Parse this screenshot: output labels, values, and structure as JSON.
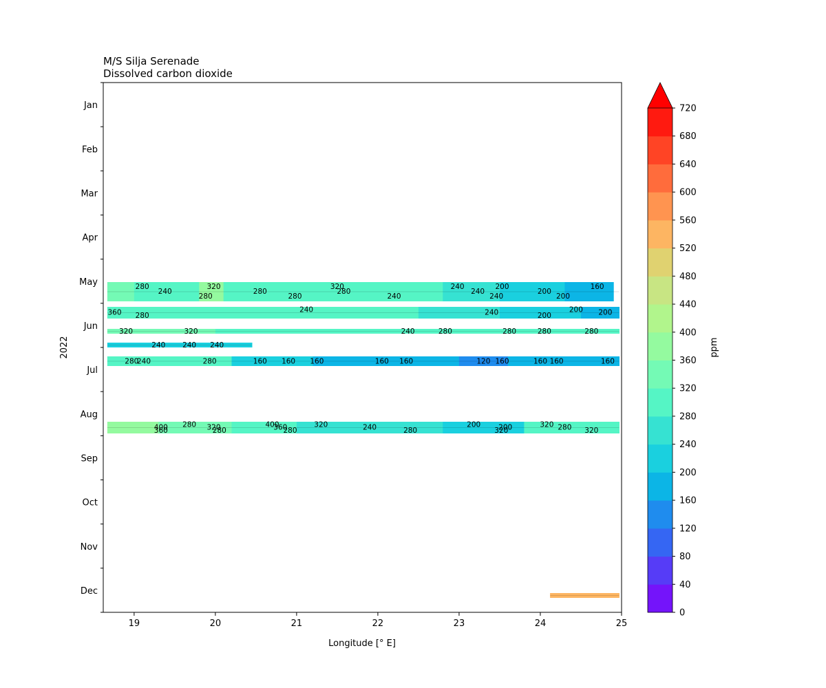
{
  "chart_data": {
    "type": "heatmap",
    "title_line1": "M/S Silja Serenade",
    "title_line2": "Dissolved carbon dioxide",
    "xlabel": "Longitude [° E]",
    "ylabel": "2022",
    "colorbar_label": "ppm",
    "xlim": [
      18.62,
      25.0
    ],
    "xticks": [
      19,
      20,
      21,
      22,
      23,
      24,
      25
    ],
    "y_month_labels": [
      "Jan",
      "Feb",
      "Mar",
      "Apr",
      "May",
      "Jun",
      "Jul",
      "Aug",
      "Sep",
      "Oct",
      "Nov",
      "Dec"
    ],
    "levels": [
      0,
      40,
      80,
      120,
      160,
      200,
      240,
      280,
      320,
      360,
      400,
      440,
      480,
      520,
      560,
      600,
      640,
      680,
      720
    ],
    "level_colors": [
      "#7414fa",
      "#563cf7",
      "#3566f3",
      "#1f8cee",
      "#0cb5e6",
      "#1ad0df",
      "#36e2d2",
      "#55f5c5",
      "#74fab5",
      "#94fa9f",
      "#b1f58c",
      "#c8e583",
      "#e0d270",
      "#fdb562",
      "#ff9450",
      "#ff6c3c",
      "#ff4425",
      "#ff1a10"
    ],
    "extend_color": "#ff0000",
    "bands": [
      {
        "period": "mid May (i)",
        "lon": [
          18.67,
          24.97
        ],
        "segments": [
          [
            18.67,
            19.0,
            320
          ],
          [
            19.0,
            19.8,
            300
          ],
          [
            19.8,
            20.1,
            360
          ],
          [
            20.1,
            22.8,
            280
          ],
          [
            22.8,
            23.5,
            240
          ],
          [
            23.5,
            24.3,
            200
          ],
          [
            24.3,
            24.9,
            180
          ]
        ]
      },
      {
        "period": "late May",
        "lon": [
          18.67,
          24.97
        ],
        "segments": [
          [
            18.67,
            20.0,
            300
          ],
          [
            20.0,
            22.5,
            280
          ],
          [
            22.5,
            23.5,
            240
          ],
          [
            23.5,
            24.5,
            200
          ],
          [
            24.5,
            24.97,
            190
          ]
        ]
      },
      {
        "period": "early Jun",
        "lon": [
          18.67,
          24.97
        ],
        "segments": [
          [
            18.67,
            20.0,
            320
          ],
          [
            20.0,
            23.5,
            280
          ],
          [
            23.5,
            24.97,
            280
          ]
        ]
      },
      {
        "period": "mid Jun",
        "lon": [
          18.67,
          20.45
        ],
        "segments": [
          [
            18.67,
            20.45,
            220
          ]
        ]
      },
      {
        "period": "late Jun",
        "lon": [
          18.67,
          24.97
        ],
        "segments": [
          [
            18.67,
            19.3,
            300
          ],
          [
            19.3,
            20.2,
            280
          ],
          [
            20.2,
            21.2,
            200
          ],
          [
            21.2,
            23.0,
            170
          ],
          [
            23.0,
            23.6,
            140
          ],
          [
            23.6,
            24.5,
            170
          ],
          [
            24.5,
            24.97,
            180
          ]
        ]
      },
      {
        "period": "mid Aug",
        "lon": [
          18.67,
          24.97
        ],
        "segments": [
          [
            18.67,
            19.3,
            380
          ],
          [
            19.3,
            20.2,
            320
          ],
          [
            20.2,
            21.0,
            300
          ],
          [
            21.0,
            22.8,
            260
          ],
          [
            22.8,
            23.8,
            220
          ],
          [
            23.8,
            24.97,
            300
          ]
        ]
      },
      {
        "period": "Dec",
        "lon": [
          24.12,
          24.97
        ],
        "segments": [
          [
            24.12,
            24.97,
            540
          ]
        ]
      }
    ],
    "contour_labels": [
      {
        "text": "280",
        "lon": 19.1,
        "band": 0
      },
      {
        "text": "240",
        "lon": 19.38,
        "band": 0
      },
      {
        "text": "280",
        "lon": 19.88,
        "band": 0
      },
      {
        "text": "320",
        "lon": 19.98,
        "band": 0
      },
      {
        "text": "280",
        "lon": 20.55,
        "band": 0
      },
      {
        "text": "280",
        "lon": 20.98,
        "band": 0
      },
      {
        "text": "320",
        "lon": 21.5,
        "band": 0
      },
      {
        "text": "280",
        "lon": 21.58,
        "band": 0
      },
      {
        "text": "240",
        "lon": 22.2,
        "band": 0
      },
      {
        "text": "240",
        "lon": 22.98,
        "band": 0
      },
      {
        "text": "240",
        "lon": 23.23,
        "band": 0
      },
      {
        "text": "240",
        "lon": 23.46,
        "band": 0
      },
      {
        "text": "200",
        "lon": 23.53,
        "band": 0
      },
      {
        "text": "200",
        "lon": 24.05,
        "band": 0
      },
      {
        "text": "200",
        "lon": 24.28,
        "band": 0
      },
      {
        "text": "160",
        "lon": 24.7,
        "band": 0
      },
      {
        "text": "360",
        "lon": 18.76,
        "band": 1
      },
      {
        "text": "280",
        "lon": 19.1,
        "band": 1
      },
      {
        "text": "240",
        "lon": 21.12,
        "band": 1
      },
      {
        "text": "240",
        "lon": 23.4,
        "band": 1
      },
      {
        "text": "200",
        "lon": 24.05,
        "band": 1
      },
      {
        "text": "200",
        "lon": 24.44,
        "band": 1
      },
      {
        "text": "200",
        "lon": 24.8,
        "band": 1
      },
      {
        "text": "320",
        "lon": 18.9,
        "band": 2
      },
      {
        "text": "320",
        "lon": 19.7,
        "band": 2
      },
      {
        "text": "240",
        "lon": 22.37,
        "band": 2
      },
      {
        "text": "280",
        "lon": 22.83,
        "band": 2
      },
      {
        "text": "280",
        "lon": 23.62,
        "band": 2
      },
      {
        "text": "280",
        "lon": 24.05,
        "band": 2
      },
      {
        "text": "280",
        "lon": 24.63,
        "band": 2
      },
      {
        "text": "240",
        "lon": 19.3,
        "band": 3
      },
      {
        "text": "240",
        "lon": 19.68,
        "band": 3
      },
      {
        "text": "240",
        "lon": 20.02,
        "band": 3
      },
      {
        "text": "280",
        "lon": 18.97,
        "band": 4
      },
      {
        "text": "240",
        "lon": 19.12,
        "band": 4
      },
      {
        "text": "280",
        "lon": 19.93,
        "band": 4
      },
      {
        "text": "160",
        "lon": 20.55,
        "band": 4
      },
      {
        "text": "160",
        "lon": 20.9,
        "band": 4
      },
      {
        "text": "160",
        "lon": 21.25,
        "band": 4
      },
      {
        "text": "160",
        "lon": 22.05,
        "band": 4
      },
      {
        "text": "160",
        "lon": 22.35,
        "band": 4
      },
      {
        "text": "120",
        "lon": 23.3,
        "band": 4
      },
      {
        "text": "160",
        "lon": 23.53,
        "band": 4
      },
      {
        "text": "160",
        "lon": 24.0,
        "band": 4
      },
      {
        "text": "160",
        "lon": 24.2,
        "band": 4
      },
      {
        "text": "160",
        "lon": 24.83,
        "band": 4
      },
      {
        "text": "400",
        "lon": 19.33,
        "band": 5
      },
      {
        "text": "360",
        "lon": 19.33,
        "band": 5
      },
      {
        "text": "280",
        "lon": 19.68,
        "band": 5
      },
      {
        "text": "320",
        "lon": 19.98,
        "band": 5
      },
      {
        "text": "280",
        "lon": 20.05,
        "band": 5
      },
      {
        "text": "400",
        "lon": 20.7,
        "band": 5
      },
      {
        "text": "360",
        "lon": 20.8,
        "band": 5
      },
      {
        "text": "280",
        "lon": 20.92,
        "band": 5
      },
      {
        "text": "320",
        "lon": 21.3,
        "band": 5
      },
      {
        "text": "240",
        "lon": 21.9,
        "band": 5
      },
      {
        "text": "280",
        "lon": 22.4,
        "band": 5
      },
      {
        "text": "200",
        "lon": 23.18,
        "band": 5
      },
      {
        "text": "200",
        "lon": 23.57,
        "band": 5
      },
      {
        "text": "320",
        "lon": 23.52,
        "band": 5
      },
      {
        "text": "320",
        "lon": 24.08,
        "band": 5
      },
      {
        "text": "280",
        "lon": 24.3,
        "band": 5
      },
      {
        "text": "320",
        "lon": 24.63,
        "band": 5
      }
    ]
  }
}
